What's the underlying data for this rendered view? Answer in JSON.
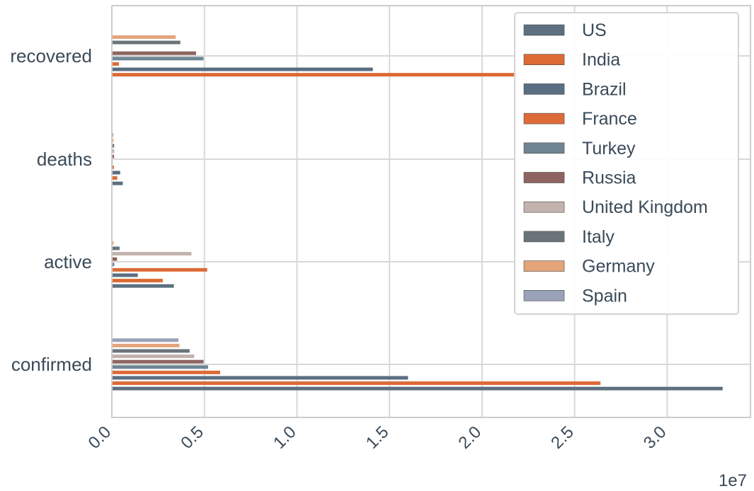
{
  "chart_data": {
    "type": "bar",
    "orientation": "horizontal",
    "categories": [
      "confirmed",
      "active",
      "deaths",
      "recovered"
    ],
    "series": [
      {
        "name": "US",
        "color": "#5d7080",
        "values": [
          33000000,
          3350000,
          590000,
          0
        ]
      },
      {
        "name": "India",
        "color": "#dc6a35",
        "values": [
          26400000,
          2750000,
          290000,
          21900000
        ]
      },
      {
        "name": "Brazil",
        "color": "#5a6e82",
        "values": [
          16000000,
          1400000,
          450000,
          14100000
        ]
      },
      {
        "name": "France",
        "color": "#dd6b38",
        "values": [
          5850000,
          5150000,
          110000,
          380000
        ]
      },
      {
        "name": "Turkey",
        "color": "#6f8594",
        "values": [
          5200000,
          130000,
          46000,
          4950000
        ]
      },
      {
        "name": "Russia",
        "color": "#8e6460",
        "values": [
          4950000,
          280000,
          120000,
          4550000
        ]
      },
      {
        "name": "United Kingdom",
        "color": "#c2b2ad",
        "values": [
          4450000,
          4300000,
          128000,
          15000
        ]
      },
      {
        "name": "Italy",
        "color": "#6a7479",
        "values": [
          4200000,
          420000,
          125000,
          3700000
        ]
      },
      {
        "name": "Germany",
        "color": "#e4a47a",
        "values": [
          3650000,
          95000,
          88000,
          3450000
        ]
      },
      {
        "name": "Spain",
        "color": "#9aa2b8",
        "values": [
          3600000,
          0,
          80000,
          0
        ]
      }
    ],
    "xticks": [
      "0.0",
      "0.5",
      "1.0",
      "1.5",
      "2.0",
      "2.5",
      "3.0"
    ],
    "xtick_values": [
      0,
      5000000,
      10000000,
      15000000,
      20000000,
      25000000,
      30000000
    ],
    "offset_label": "1e7",
    "xlim": [
      0,
      34500000
    ],
    "grid": true,
    "legend_position": "upper right"
  }
}
